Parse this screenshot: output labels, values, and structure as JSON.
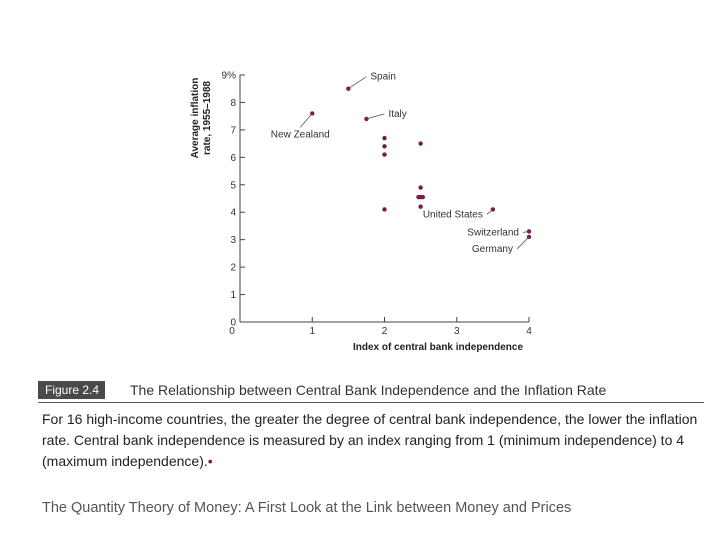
{
  "chart_data": {
    "type": "scatter",
    "xlabel": "Index of central bank independence",
    "ylabel": "Average inflation rate, 1955–1988",
    "xlim": [
      0,
      4
    ],
    "ylim": [
      0,
      9
    ],
    "x_ticks": [
      "0",
      "1",
      "2",
      "3",
      "4"
    ],
    "y_ticks": [
      "0",
      "1",
      "2",
      "3",
      "4",
      "5",
      "6",
      "7",
      "8",
      "9%"
    ],
    "points": [
      {
        "x": 1.0,
        "y": 7.6
      },
      {
        "x": 1.5,
        "y": 8.5
      },
      {
        "x": 1.75,
        "y": 7.4
      },
      {
        "x": 2.0,
        "y": 6.7
      },
      {
        "x": 2.0,
        "y": 6.4
      },
      {
        "x": 2.0,
        "y": 6.1
      },
      {
        "x": 2.0,
        "y": 4.1
      },
      {
        "x": 2.5,
        "y": 6.5
      },
      {
        "x": 2.5,
        "y": 4.9
      },
      {
        "x": 2.5,
        "y": 4.55
      },
      {
        "x": 2.47,
        "y": 4.55
      },
      {
        "x": 2.53,
        "y": 4.55
      },
      {
        "x": 2.5,
        "y": 4.2
      },
      {
        "x": 3.5,
        "y": 4.1
      },
      {
        "x": 4.0,
        "y": 3.3
      },
      {
        "x": 4.0,
        "y": 3.1
      }
    ],
    "annotations": [
      {
        "label": "Spain",
        "x": 1.5,
        "y": 8.5
      },
      {
        "label": "Italy",
        "x": 1.75,
        "y": 7.4
      },
      {
        "label": "New Zealand",
        "x": 1.0,
        "y": 7.6
      },
      {
        "label": "United States",
        "x": 3.5,
        "y": 4.1
      },
      {
        "label": "Switzerland",
        "x": 4.0,
        "y": 3.3
      },
      {
        "label": "Germany",
        "x": 4.0,
        "y": 3.1
      }
    ],
    "point_color": "#7a1a4a",
    "grid": false,
    "legend": "none"
  },
  "caption": {
    "figure_tag": "Figure 2.4",
    "title": "The Relationship between Central Bank Independence and the Inflation Rate",
    "description": "For 16 high-income countries, the greater the degree of central bank independence, the lower the inflation rate. Central bank independence is measured by an index ranging from 1 (minimum independence) to 4 (maximum independence).",
    "description_end_mark": "•"
  },
  "footer": {
    "text": "The Quantity Theory of Money: A First Look at the Link between Money and Prices"
  }
}
